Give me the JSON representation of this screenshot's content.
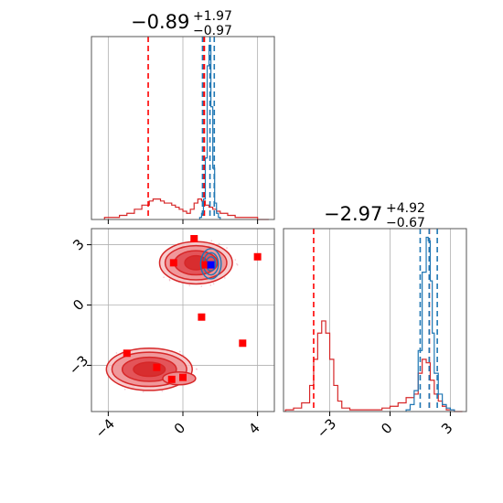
{
  "colors": {
    "red": "#d62728",
    "red_quantile": "#ff0000",
    "blue": "#1f77b4",
    "marker_red": "#ff0000",
    "marker_blue": "#0000ff",
    "grid": "#b0b0b0"
  },
  "chart_data": [
    {
      "type": "histogram",
      "panel": "top-left marginal (parameter 1)",
      "title": {
        "median": "−0.89",
        "plus": "+1.97",
        "minus": "−0.97"
      },
      "xlim": [
        -4.9,
        4.9
      ],
      "xticks": [
        -4,
        0,
        4
      ],
      "grid": true,
      "series": [
        {
          "color": "red",
          "bin_edges": [
            -4.2,
            -3.8,
            -3.4,
            -3.0,
            -2.6,
            -2.2,
            -1.8,
            -1.6,
            -1.4,
            -1.2,
            -1.0,
            -0.8,
            -0.6,
            -0.4,
            -0.2,
            0.0,
            0.2,
            0.4,
            0.6,
            0.8,
            1.0,
            1.2,
            1.4,
            1.6,
            1.8,
            2.0,
            2.4,
            2.8,
            3.2,
            3.6,
            4.0,
            4.6
          ],
          "counts": [
            1,
            1,
            2,
            3,
            5,
            7,
            9,
            10,
            10,
            9,
            8,
            8,
            7,
            6,
            5,
            4,
            3,
            5,
            8,
            10,
            9,
            7,
            6,
            5,
            4,
            3,
            2,
            1,
            1,
            1,
            0
          ],
          "quantiles": [
            -1.86,
            1.08,
            1.15
          ]
        },
        {
          "color": "blue",
          "bin_edges": [
            0.9,
            1.0,
            1.1,
            1.2,
            1.3,
            1.4,
            1.5,
            1.6,
            1.7,
            1.8,
            1.9,
            2.0
          ],
          "counts": [
            1,
            3,
            10,
            30,
            75,
            85,
            55,
            25,
            8,
            3,
            1
          ],
          "quantiles": [
            1.05,
            1.45,
            1.68
          ]
        }
      ]
    },
    {
      "type": "scatter",
      "panel": "bottom-left joint (parameter 1 vs parameter 2)",
      "xlim": [
        -4.9,
        4.9
      ],
      "ylim": [
        -5.3,
        3.8
      ],
      "xticks": [
        -4,
        0,
        4
      ],
      "yticks": [
        3,
        0,
        -3
      ],
      "grid": true,
      "contours_red": [
        {
          "center": [
            -1.8,
            -3.2
          ],
          "radii": [
            [
              2.3,
              1.05
            ],
            [
              2.0,
              0.85
            ],
            [
              1.45,
              0.6
            ],
            [
              0.85,
              0.35
            ]
          ],
          "lobe": [
            -0.2,
            -3.65
          ]
        },
        {
          "center": [
            0.7,
            2.1
          ],
          "radii": [
            [
              1.95,
              1.05
            ],
            [
              1.65,
              0.85
            ],
            [
              1.15,
              0.6
            ],
            [
              0.6,
              0.35
            ]
          ]
        }
      ],
      "contours_blue": [
        {
          "center": [
            1.5,
            2.05
          ],
          "radii": [
            [
              0.55,
              0.75
            ],
            [
              0.4,
              0.55
            ],
            [
              0.25,
              0.35
            ]
          ]
        }
      ],
      "markers_red": [
        [
          -3.0,
          -2.4
        ],
        [
          -1.4,
          -3.1
        ],
        [
          -0.6,
          -3.7
        ],
        [
          0.0,
          -3.6
        ],
        [
          -0.5,
          2.1
        ],
        [
          0.6,
          3.3
        ],
        [
          1.2,
          2.0
        ],
        [
          1.0,
          -0.6
        ],
        [
          3.2,
          -1.9
        ],
        [
          4.0,
          2.4
        ]
      ],
      "markers_blue": [
        [
          1.5,
          2.0
        ]
      ]
    },
    {
      "type": "histogram",
      "panel": "bottom-right marginal (parameter 2)",
      "title": {
        "median": "−2.97",
        "plus": "+4.92",
        "minus": "−0.67"
      },
      "xlim": [
        -5.3,
        3.8
      ],
      "xticks": [
        -3,
        0,
        3
      ],
      "grid": true,
      "series": [
        {
          "color": "red",
          "bin_edges": [
            -5.2,
            -4.8,
            -4.4,
            -4.0,
            -3.8,
            -3.6,
            -3.4,
            -3.2,
            -3.0,
            -2.8,
            -2.6,
            -2.4,
            -2.0,
            -1.6,
            -1.2,
            -0.8,
            -0.4,
            0.0,
            0.4,
            0.8,
            1.2,
            1.4,
            1.6,
            1.8,
            2.0,
            2.2,
            2.4,
            2.6,
            2.8,
            3.2,
            3.6
          ],
          "counts": [
            1,
            2,
            5,
            15,
            30,
            45,
            52,
            45,
            30,
            15,
            6,
            2,
            1,
            1,
            1,
            1,
            2,
            3,
            5,
            8,
            10,
            22,
            30,
            28,
            18,
            10,
            6,
            3,
            1,
            0
          ],
          "quantiles": [
            -3.8,
            1.95,
            1.95
          ]
        },
        {
          "color": "blue",
          "bin_edges": [
            0.8,
            1.0,
            1.2,
            1.4,
            1.6,
            1.8,
            1.9,
            2.0,
            2.1,
            2.2,
            2.4,
            2.6,
            2.8,
            3.0,
            3.2
          ],
          "counts": [
            1,
            4,
            12,
            35,
            80,
            100,
            98,
            75,
            45,
            22,
            10,
            4,
            2,
            1
          ],
          "quantiles": [
            1.5,
            1.95,
            2.35
          ]
        }
      ]
    }
  ]
}
